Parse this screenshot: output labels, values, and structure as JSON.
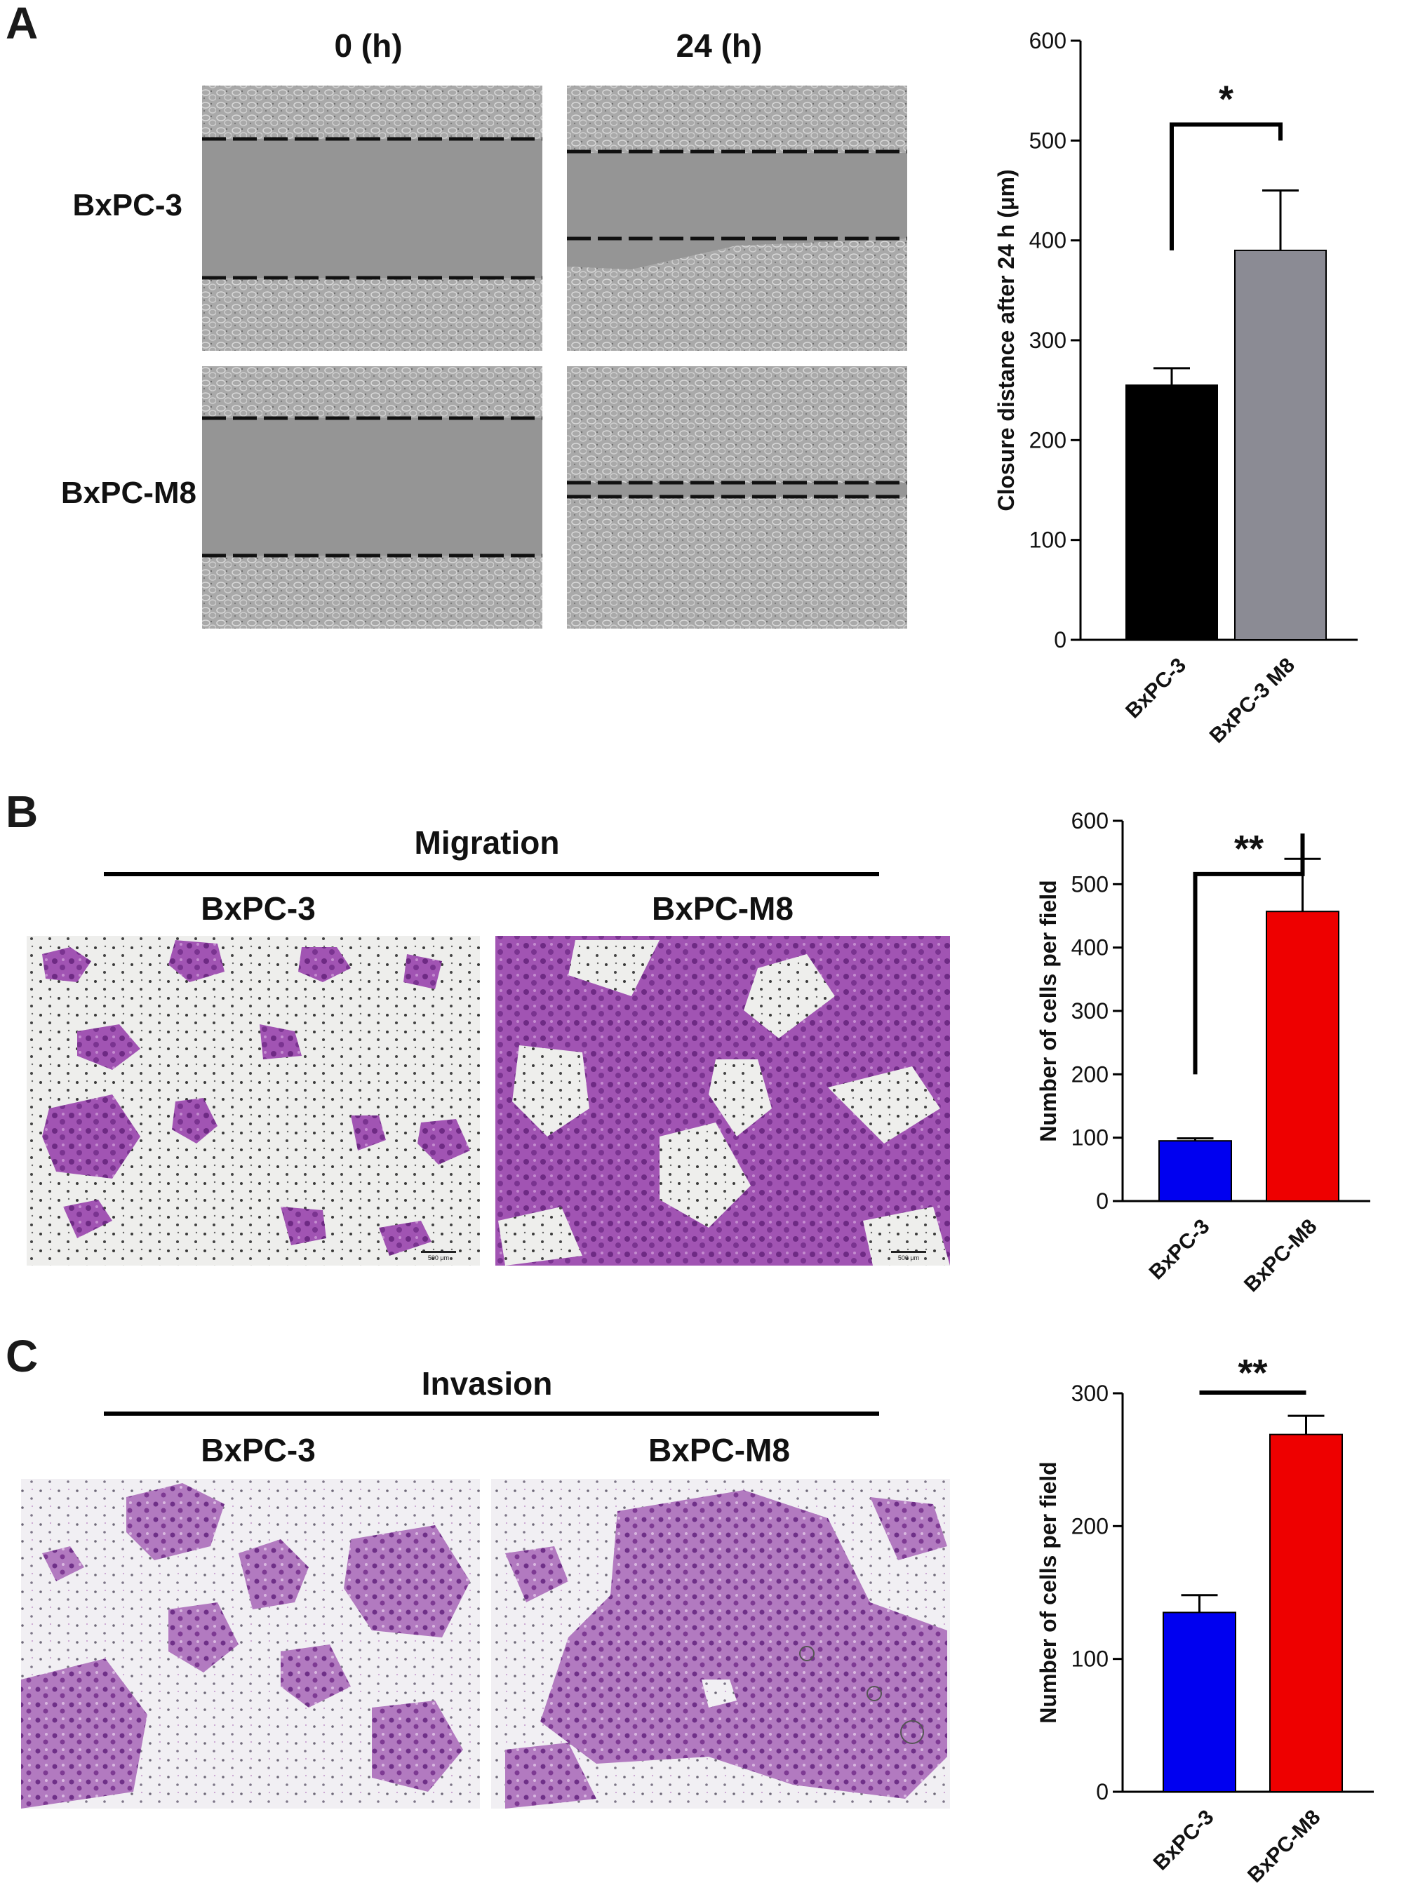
{
  "panels": {
    "A": {
      "letter": "A",
      "time_headers": [
        "0 (h)",
        "24 (h)"
      ],
      "row_labels": [
        "BxPC-3",
        "BxPC-M8"
      ]
    },
    "B": {
      "letter": "B",
      "section_title": "Migration",
      "column_labels": [
        "BxPC-3",
        "BxPC-M8"
      ],
      "scale_label": "500 μm"
    },
    "C": {
      "letter": "C",
      "section_title": "Invasion",
      "column_labels": [
        "BxPC-3",
        "BxPC-M8"
      ]
    }
  },
  "colors": {
    "black_bar": "#000000",
    "grey_bar": "#8b8b94",
    "blue_bar": "#0000f0",
    "red_bar": "#ee0000",
    "stain": "#8e3fa0"
  },
  "chart_data": [
    {
      "panel": "A",
      "type": "bar",
      "categories": [
        "BxPC-3",
        "BxPC-3 M8"
      ],
      "values": [
        255,
        390
      ],
      "errors": [
        17,
        60
      ],
      "colors": [
        "#000000",
        "#8b8b94"
      ],
      "ylabel": "Closure distance after 24 h (μm)",
      "ylim": [
        0,
        600
      ],
      "yticks": [
        0,
        100,
        200,
        300,
        400,
        500,
        600
      ],
      "significance": "*",
      "grid": false
    },
    {
      "panel": "B",
      "type": "bar",
      "categories": [
        "BxPC-3",
        "BxPC-M8"
      ],
      "values": [
        95,
        457
      ],
      "errors": [
        4,
        83
      ],
      "colors": [
        "#0000f0",
        "#ee0000"
      ],
      "ylabel": "Number of cells per field",
      "ylim": [
        0,
        600
      ],
      "yticks": [
        0,
        100,
        200,
        300,
        400,
        500,
        600
      ],
      "significance": "**",
      "grid": false
    },
    {
      "panel": "C",
      "type": "bar",
      "categories": [
        "BxPC-3",
        "BxPC-M8"
      ],
      "values": [
        135,
        269
      ],
      "errors": [
        13,
        14
      ],
      "colors": [
        "#0000f0",
        "#ee0000"
      ],
      "ylabel": "Number of cells per field",
      "ylim": [
        0,
        300
      ],
      "yticks": [
        0,
        100,
        200,
        300
      ],
      "significance": "**",
      "grid": false
    }
  ]
}
